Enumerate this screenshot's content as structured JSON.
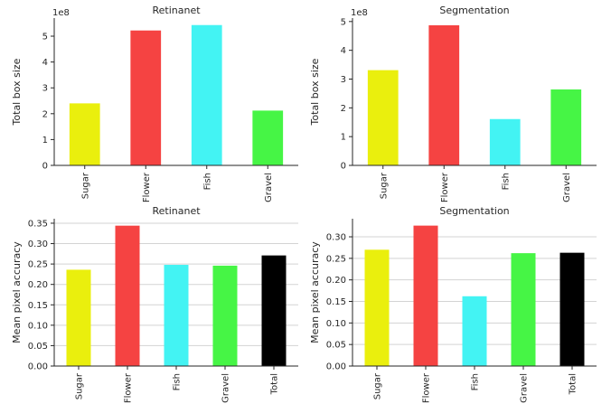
{
  "chart_data": [
    {
      "type": "bar",
      "title": "Retinanet",
      "xlabel": "",
      "ylabel": "Total box size",
      "categories": [
        "Sugar",
        "Flower",
        "Fish",
        "Gravel"
      ],
      "values": [
        240000000,
        522000000,
        543000000,
        212000000
      ],
      "colors": [
        "#eaef0d",
        "#f54342",
        "#43f3f3",
        "#46f545"
      ],
      "ylim": [
        0,
        570000000
      ],
      "yticks": [
        0,
        100000000,
        200000000,
        300000000,
        400000000,
        500000000
      ],
      "ytick_labels": [
        "0",
        "1",
        "2",
        "3",
        "4",
        "5"
      ],
      "offset_label": "1e8",
      "grid": false
    },
    {
      "type": "bar",
      "title": "Segmentation",
      "xlabel": "",
      "ylabel": "Total box size",
      "categories": [
        "Sugar",
        "Flower",
        "Fish",
        "Gravel"
      ],
      "values": [
        331000000,
        487000000,
        161000000,
        264000000
      ],
      "colors": [
        "#eaef0d",
        "#f54342",
        "#43f3f3",
        "#46f545"
      ],
      "ylim": [
        0,
        512000000
      ],
      "yticks": [
        0,
        100000000,
        200000000,
        300000000,
        400000000,
        500000000
      ],
      "ytick_labels": [
        "0",
        "1",
        "2",
        "3",
        "4",
        "5"
      ],
      "offset_label": "1e8",
      "grid": false
    },
    {
      "type": "bar",
      "title": "Retinanet",
      "xlabel": "",
      "ylabel": "Mean pixel accuracy",
      "categories": [
        "Sugar",
        "Flower",
        "Fish",
        "Gravel",
        "Total"
      ],
      "values": [
        0.236,
        0.344,
        0.248,
        0.246,
        0.271
      ],
      "colors": [
        "#eaef0d",
        "#f54342",
        "#43f3f3",
        "#46f545",
        "#000000"
      ],
      "ylim": [
        0,
        0.361
      ],
      "yticks": [
        0,
        0.05,
        0.1,
        0.15,
        0.2,
        0.25,
        0.3,
        0.35
      ],
      "ytick_labels": [
        "0.00",
        "0.05",
        "0.10",
        "0.15",
        "0.20",
        "0.25",
        "0.30",
        "0.35"
      ],
      "offset_label": "",
      "grid": true
    },
    {
      "type": "bar",
      "title": "Segmentation",
      "xlabel": "",
      "ylabel": "Mean pixel accuracy",
      "categories": [
        "Sugar",
        "Flower",
        "Fish",
        "Gravel",
        "Total"
      ],
      "values": [
        0.27,
        0.326,
        0.162,
        0.262,
        0.263
      ],
      "colors": [
        "#eaef0d",
        "#f54342",
        "#43f3f3",
        "#46f545",
        "#000000"
      ],
      "ylim": [
        0,
        0.342
      ],
      "yticks": [
        0,
        0.05,
        0.1,
        0.15,
        0.2,
        0.25,
        0.3
      ],
      "ytick_labels": [
        "0.00",
        "0.05",
        "0.10",
        "0.15",
        "0.20",
        "0.25",
        "0.30"
      ],
      "offset_label": "",
      "grid": true
    }
  ]
}
